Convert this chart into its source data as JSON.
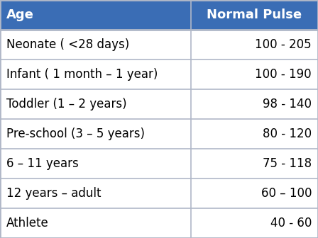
{
  "header": [
    "Age",
    "Normal Pulse"
  ],
  "rows": [
    [
      "Neonate ( <28 days)",
      "100 - 205"
    ],
    [
      "Infant ( 1 month – 1 year)",
      "100 - 190"
    ],
    [
      "Toddler (1 – 2 years)",
      "98 - 140"
    ],
    [
      "Pre-school (3 – 5 years)",
      "80 - 120"
    ],
    [
      "6 – 11 years",
      "75 - 118"
    ],
    [
      "12 years – adult",
      "60 – 100"
    ],
    [
      "Athlete",
      "40 - 60"
    ]
  ],
  "header_bg": "#3a6db5",
  "header_text_color": "#ffffff",
  "row_bg": "#ffffff",
  "row_text_color": "#000000",
  "border_color": "#b0b8c8",
  "col_split": 0.6,
  "header_fontsize": 13,
  "row_fontsize": 12,
  "fig_bg": "#ffffff"
}
